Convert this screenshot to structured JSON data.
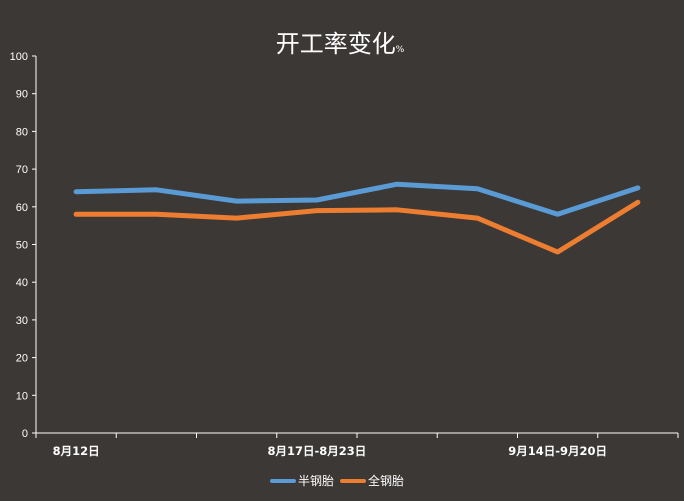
{
  "chart_data": {
    "type": "line",
    "title": "开工率变化",
    "title_unit": "%",
    "xlabel": "",
    "ylabel": "",
    "ylim": [
      0,
      100
    ],
    "yticks": [
      0,
      10,
      20,
      30,
      40,
      50,
      60,
      70,
      80,
      90,
      100
    ],
    "categories": [
      "8月12日",
      "",
      "",
      "8月17日-8月23日",
      "",
      "",
      "9月14日-9月20日",
      ""
    ],
    "grid": false,
    "legend_position": "bottom",
    "series": [
      {
        "name": "半钢胎",
        "color": "#5b9bd5",
        "values": [
          64,
          64.5,
          61.5,
          61.8,
          66,
          64.8,
          58,
          65
        ]
      },
      {
        "name": "全钢胎",
        "color": "#ed7d31",
        "values": [
          58,
          58,
          57,
          59,
          59.2,
          57,
          48,
          61.2
        ]
      }
    ]
  }
}
